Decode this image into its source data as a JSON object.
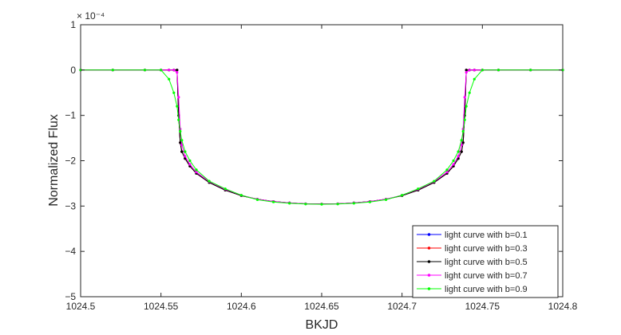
{
  "chart_data": {
    "type": "line",
    "title": "",
    "xlabel": "BKJD",
    "ylabel": "Normalized Flux",
    "y_exponent_label": "× 10⁻⁴",
    "xlim": [
      1024.5,
      1024.8
    ],
    "ylim": [
      -5,
      1
    ],
    "y_display_scale": 0.0001,
    "x_ticks": [
      1024.5,
      1024.55,
      1024.6,
      1024.65,
      1024.7,
      1024.75,
      1024.8
    ],
    "x_tick_labels": [
      "1024.5",
      "1024.55",
      "1024.6",
      "1024.65",
      "1024.7",
      "1024.75",
      "1024.8"
    ],
    "y_ticks": [
      1,
      0,
      -1,
      -2,
      -3,
      -4,
      -5
    ],
    "y_tick_labels": [
      "1",
      "0",
      "−1",
      "−2",
      "−3",
      "−4",
      "−5"
    ],
    "grid": false,
    "legend_position": "bottom-right",
    "x": [
      1024.5,
      1024.52,
      1024.54,
      1024.55,
      1024.555,
      1024.558,
      1024.56,
      1024.561,
      1024.562,
      1024.563,
      1024.565,
      1024.568,
      1024.572,
      1024.58,
      1024.59,
      1024.6,
      1024.61,
      1024.62,
      1024.63,
      1024.64,
      1024.65,
      1024.66,
      1024.67,
      1024.68,
      1024.69,
      1024.7,
      1024.71,
      1024.72,
      1024.728,
      1024.732,
      1024.735,
      1024.737,
      1024.738,
      1024.739,
      1024.74,
      1024.742,
      1024.745,
      1024.75,
      1024.76,
      1024.78,
      1024.8
    ],
    "series": [
      {
        "name": "light curve with b=0.1",
        "color": "#0000ff",
        "values": [
          0,
          0,
          0,
          0,
          0,
          0,
          0,
          -1.0,
          -1.6,
          -1.8,
          -1.95,
          -2.12,
          -2.28,
          -2.48,
          -2.65,
          -2.77,
          -2.85,
          -2.9,
          -2.93,
          -2.95,
          -2.955,
          -2.95,
          -2.93,
          -2.9,
          -2.85,
          -2.77,
          -2.65,
          -2.48,
          -2.28,
          -2.12,
          -1.95,
          -1.8,
          -1.6,
          -1.0,
          0,
          0,
          0,
          0,
          0,
          0,
          0
        ]
      },
      {
        "name": "light curve with b=0.3",
        "color": "#ff0000",
        "values": [
          0,
          0,
          0,
          0,
          0,
          0,
          0,
          -1.0,
          -1.6,
          -1.8,
          -1.95,
          -2.12,
          -2.28,
          -2.48,
          -2.65,
          -2.77,
          -2.85,
          -2.9,
          -2.93,
          -2.95,
          -2.955,
          -2.95,
          -2.93,
          -2.9,
          -2.85,
          -2.77,
          -2.65,
          -2.48,
          -2.28,
          -2.12,
          -1.95,
          -1.8,
          -1.6,
          -1.0,
          0,
          0,
          0,
          0,
          0,
          0,
          0
        ]
      },
      {
        "name": "light curve with b=0.5",
        "color": "#000000",
        "values": [
          0,
          0,
          0,
          0,
          0,
          0,
          0,
          -1.0,
          -1.6,
          -1.8,
          -1.95,
          -2.12,
          -2.28,
          -2.48,
          -2.65,
          -2.77,
          -2.85,
          -2.9,
          -2.93,
          -2.95,
          -2.955,
          -2.95,
          -2.93,
          -2.9,
          -2.85,
          -2.77,
          -2.65,
          -2.48,
          -2.28,
          -2.12,
          -1.95,
          -1.8,
          -1.6,
          -1.0,
          0,
          0,
          0,
          0,
          0,
          0,
          0
        ]
      },
      {
        "name": "light curve with b=0.7",
        "color": "#ff00ff",
        "values": [
          0,
          0,
          0,
          0,
          0,
          0,
          -0.05,
          -0.6,
          -1.3,
          -1.65,
          -1.9,
          -2.08,
          -2.25,
          -2.46,
          -2.63,
          -2.76,
          -2.85,
          -2.9,
          -2.93,
          -2.95,
          -2.955,
          -2.95,
          -2.93,
          -2.9,
          -2.85,
          -2.76,
          -2.63,
          -2.46,
          -2.25,
          -2.08,
          -1.9,
          -1.65,
          -1.3,
          -0.6,
          -0.05,
          0,
          0,
          0,
          0,
          0,
          0
        ]
      },
      {
        "name": "light curve with b=0.9",
        "color": "#00ff00",
        "values": [
          0,
          0,
          0,
          0,
          -0.2,
          -0.5,
          -0.8,
          -1.1,
          -1.35,
          -1.55,
          -1.8,
          -2.0,
          -2.2,
          -2.45,
          -2.62,
          -2.76,
          -2.86,
          -2.91,
          -2.94,
          -2.955,
          -2.96,
          -2.955,
          -2.94,
          -2.91,
          -2.86,
          -2.76,
          -2.62,
          -2.45,
          -2.2,
          -2.0,
          -1.8,
          -1.55,
          -1.35,
          -1.1,
          -0.8,
          -0.5,
          -0.2,
          0,
          0,
          0,
          0
        ]
      }
    ]
  }
}
